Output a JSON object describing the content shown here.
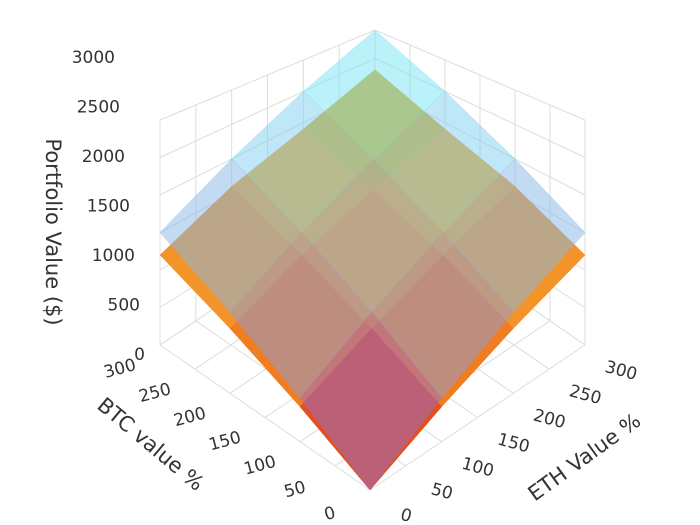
{
  "chart_data": {
    "type": "surface",
    "x_label": "BTC value %",
    "y_label": "ETH Value %",
    "z_label": "Portfolio Value ($)",
    "x": [
      0,
      100,
      200,
      300
    ],
    "y": [
      0,
      100,
      200,
      300
    ],
    "xlim": [
      0,
      300
    ],
    "ylim": [
      0,
      300
    ],
    "zlim": [
      0,
      3000
    ],
    "xticks": [
      0,
      50,
      100,
      150,
      200,
      250,
      300
    ],
    "yticks": [
      0,
      50,
      100,
      150,
      200,
      250,
      300
    ],
    "zticks": [
      0,
      500,
      1000,
      1500,
      2000,
      2500,
      3000
    ],
    "grid": true,
    "surfaces": [
      {
        "z": [
          [
            0,
            400,
            800,
            1200
          ],
          [
            400,
            800,
            1200,
            1600
          ],
          [
            800,
            1200,
            1550,
            1900
          ],
          [
            1200,
            1600,
            1900,
            2300
          ]
        ],
        "colorscale": [
          "#d42020",
          "#f07a20",
          "#f5a530",
          "#c8b420",
          "#2ca070"
        ],
        "opacity": 1
      },
      {
        "z": [
          [
            0,
            500,
            1000,
            1500
          ],
          [
            500,
            1000,
            1500,
            2000
          ],
          [
            1000,
            1500,
            2000,
            2500
          ],
          [
            1500,
            2000,
            2500,
            3000
          ]
        ],
        "colorscale": [
          "#a040c0",
          "#8aa0e0",
          "#80d0f0",
          "#70f8f8"
        ],
        "opacity": 0.5
      }
    ]
  }
}
